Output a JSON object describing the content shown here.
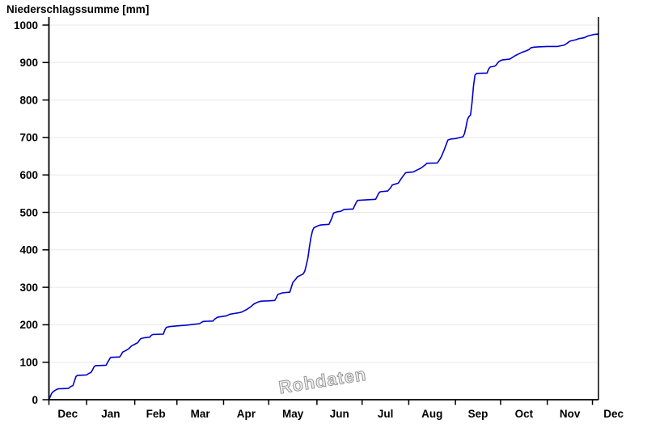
{
  "chart_data": {
    "type": "line",
    "title": "Niederschlagssumme [mm]",
    "ylabel": "Niederschlagssumme [mm]",
    "xlabel": "",
    "watermark": "Rohdaten",
    "line_color": "#0000cc",
    "grid_color": "#e8e8e8",
    "axis_color": "#000000",
    "watermark_color": "#8f8f8f",
    "grid": "horizontal-only",
    "legend": "none",
    "ylim": [
      0,
      1000
    ],
    "y_ticks": [
      0,
      100,
      200,
      300,
      400,
      500,
      600,
      700,
      800,
      900,
      1000
    ],
    "x_labels": [
      "Dec",
      "Jan",
      "Feb",
      "Mar",
      "Apr",
      "May",
      "Jun",
      "Jul",
      "Aug",
      "Sep",
      "Oct",
      "Nov",
      "Dec"
    ],
    "x_tick_days": [
      0,
      25,
      57,
      85,
      116,
      146,
      178,
      208,
      239,
      270,
      300,
      331,
      361
    ],
    "x_label_days": [
      12.5,
      41,
      71,
      100.5,
      131,
      162,
      193,
      223.5,
      254.5,
      285,
      315.5,
      346,
      375
    ],
    "x_range_days": [
      0,
      365
    ],
    "x_unit": "day of period (Dec through Dec)",
    "y_unit": "mm cumulative precipitation",
    "points": [
      [
        0,
        0
      ],
      [
        1,
        10
      ],
      [
        2,
        18
      ],
      [
        3,
        22
      ],
      [
        5,
        27
      ],
      [
        6,
        29
      ],
      [
        13,
        30
      ],
      [
        14,
        34
      ],
      [
        16,
        38
      ],
      [
        17,
        50
      ],
      [
        18,
        62
      ],
      [
        19,
        65
      ],
      [
        25,
        66
      ],
      [
        26,
        69
      ],
      [
        28,
        73
      ],
      [
        29,
        80
      ],
      [
        30,
        88
      ],
      [
        31,
        91
      ],
      [
        38,
        92
      ],
      [
        39,
        100
      ],
      [
        41,
        113
      ],
      [
        47,
        114
      ],
      [
        48,
        120
      ],
      [
        49,
        127
      ],
      [
        51,
        131
      ],
      [
        53,
        136
      ],
      [
        55,
        144
      ],
      [
        57,
        148
      ],
      [
        59,
        152
      ],
      [
        60,
        158
      ],
      [
        61,
        163
      ],
      [
        63,
        165
      ],
      [
        67,
        167
      ],
      [
        68,
        172
      ],
      [
        69,
        174
      ],
      [
        76,
        175
      ],
      [
        77,
        186
      ],
      [
        78,
        193
      ],
      [
        80,
        195
      ],
      [
        85,
        197
      ],
      [
        91,
        199
      ],
      [
        96,
        201
      ],
      [
        100,
        203
      ],
      [
        102,
        208
      ],
      [
        103,
        209
      ],
      [
        109,
        210
      ],
      [
        110,
        215
      ],
      [
        112,
        220
      ],
      [
        115,
        222
      ],
      [
        118,
        224
      ],
      [
        120,
        228
      ],
      [
        123,
        230
      ],
      [
        126,
        232
      ],
      [
        128,
        234
      ],
      [
        131,
        240
      ],
      [
        134,
        248
      ],
      [
        136,
        255
      ],
      [
        139,
        261
      ],
      [
        141,
        263
      ],
      [
        146,
        264
      ],
      [
        150,
        265
      ],
      [
        151,
        272
      ],
      [
        152,
        281
      ],
      [
        155,
        285
      ],
      [
        160,
        287
      ],
      [
        161,
        300
      ],
      [
        162,
        313
      ],
      [
        164,
        322
      ],
      [
        165,
        328
      ],
      [
        167,
        332
      ],
      [
        169,
        336
      ],
      [
        170,
        344
      ],
      [
        171,
        360
      ],
      [
        172,
        378
      ],
      [
        173,
        408
      ],
      [
        174,
        432
      ],
      [
        175,
        450
      ],
      [
        176,
        459
      ],
      [
        178,
        463
      ],
      [
        180,
        466
      ],
      [
        182,
        467
      ],
      [
        186,
        468
      ],
      [
        188,
        486
      ],
      [
        189,
        498
      ],
      [
        191,
        501
      ],
      [
        194,
        503
      ],
      [
        196,
        508
      ],
      [
        202,
        509
      ],
      [
        204,
        526
      ],
      [
        205,
        532
      ],
      [
        209,
        533
      ],
      [
        217,
        535
      ],
      [
        219,
        551
      ],
      [
        220,
        555
      ],
      [
        225,
        557
      ],
      [
        227,
        566
      ],
      [
        228,
        573
      ],
      [
        232,
        578
      ],
      [
        234,
        590
      ],
      [
        236,
        601
      ],
      [
        237,
        606
      ],
      [
        242,
        608
      ],
      [
        245,
        614
      ],
      [
        247,
        618
      ],
      [
        248,
        621
      ],
      [
        250,
        627
      ],
      [
        251,
        631
      ],
      [
        258,
        632
      ],
      [
        260,
        644
      ],
      [
        261,
        652
      ],
      [
        262,
        662
      ],
      [
        263,
        672
      ],
      [
        264,
        683
      ],
      [
        265,
        693
      ],
      [
        267,
        696
      ],
      [
        270,
        697
      ],
      [
        272,
        699
      ],
      [
        275,
        702
      ],
      [
        276,
        710
      ],
      [
        277,
        728
      ],
      [
        278,
        748
      ],
      [
        279,
        756
      ],
      [
        280,
        760
      ],
      [
        281,
        792
      ],
      [
        282,
        838
      ],
      [
        283,
        866
      ],
      [
        284,
        871
      ],
      [
        291,
        872
      ],
      [
        292,
        882
      ],
      [
        293,
        888
      ],
      [
        296,
        890
      ],
      [
        297,
        893
      ],
      [
        298,
        899
      ],
      [
        299,
        903
      ],
      [
        301,
        907
      ],
      [
        306,
        909
      ],
      [
        308,
        914
      ],
      [
        310,
        919
      ],
      [
        312,
        923
      ],
      [
        314,
        927
      ],
      [
        317,
        931
      ],
      [
        319,
        935
      ],
      [
        320,
        939
      ],
      [
        322,
        941
      ],
      [
        325,
        942
      ],
      [
        331,
        943
      ],
      [
        338,
        943
      ],
      [
        340,
        945
      ],
      [
        342,
        946
      ],
      [
        344,
        951
      ],
      [
        346,
        957
      ],
      [
        348,
        959
      ],
      [
        350,
        961
      ],
      [
        352,
        964
      ],
      [
        354,
        965
      ],
      [
        356,
        967
      ],
      [
        358,
        971
      ],
      [
        360,
        973
      ],
      [
        362,
        975
      ],
      [
        365,
        976
      ]
    ]
  }
}
